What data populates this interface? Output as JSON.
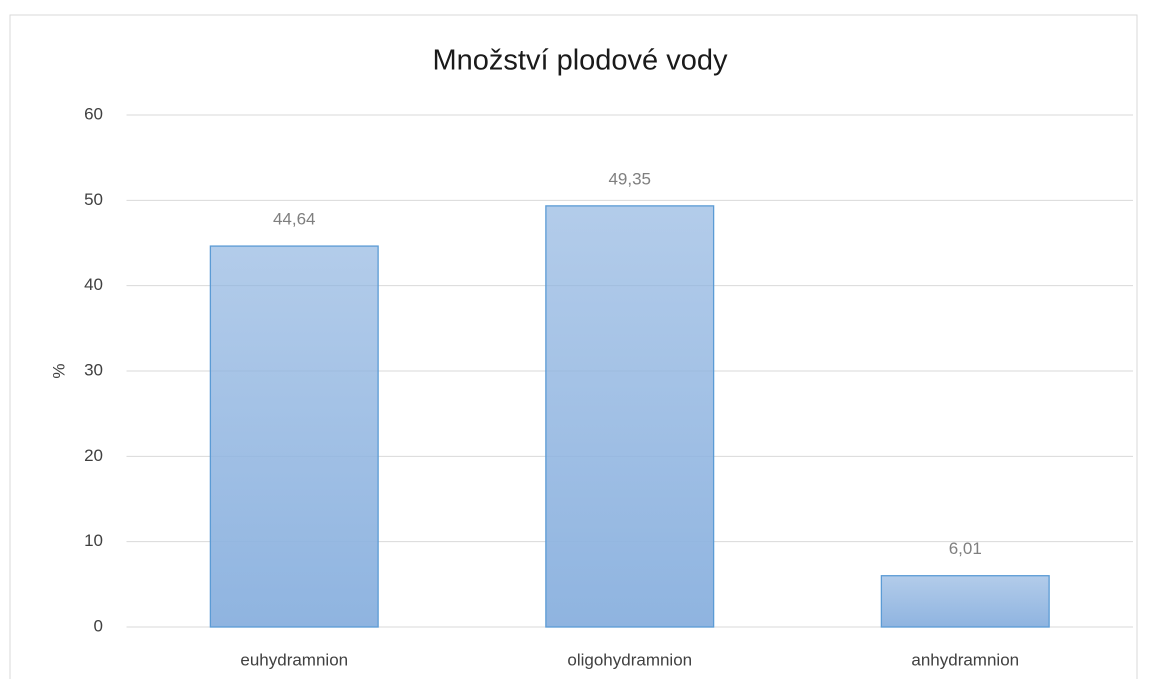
{
  "chart_data": {
    "type": "bar",
    "title": "Množství plodové vody",
    "y_label": "%",
    "categories": [
      "euhydramnion",
      "oligohydramnion",
      "anhydramnion"
    ],
    "values": [
      44.64,
      49.35,
      6.01
    ],
    "value_labels": [
      "44,64",
      "49,35",
      "6,01"
    ],
    "color": "#8fb4e0",
    "edge_color": "#5b9bd5",
    "ylim": [
      0,
      60
    ],
    "yticks": [
      0,
      10,
      20,
      30,
      40,
      50,
      60
    ],
    "grid": true
  }
}
